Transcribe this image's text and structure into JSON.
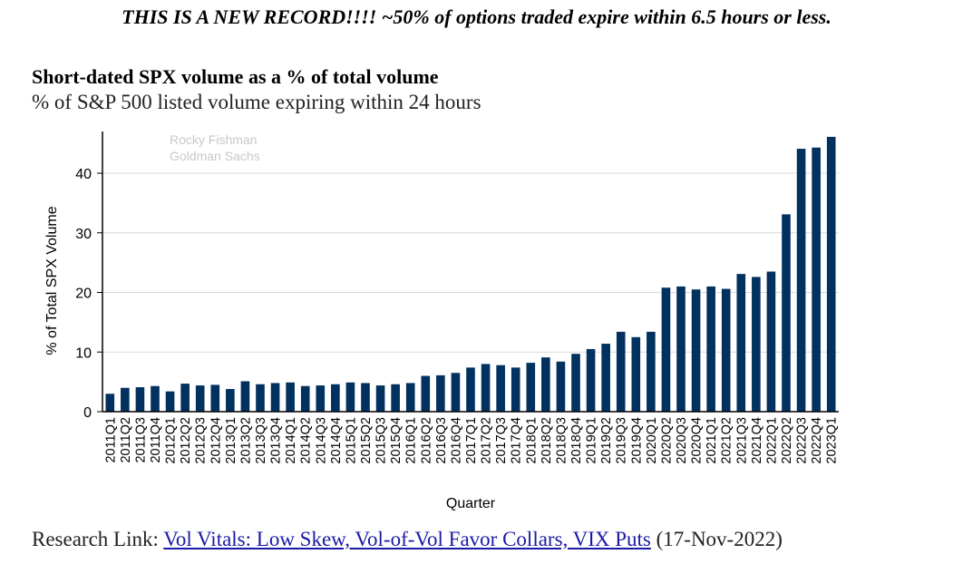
{
  "headline": "THIS IS A NEW RECORD!!!! ~50% of options traded expire within 6.5 hours or less.",
  "chart_title": "Short-dated SPX volume as a % of total volume",
  "chart_subtitle": "% of S&P 500 listed volume expiring within 24 hours",
  "watermark": {
    "line1": "Rocky Fishman",
    "line2": "Goldman Sachs"
  },
  "footer": {
    "prefix": "Research Link: ",
    "link_text": "Vol Vitals: Low Skew, Vol-of-Vol Favor Collars, VIX Puts",
    "suffix": " (17-Nov-2022)"
  },
  "colors": {
    "bar": "#00315f",
    "grid": "#d9d9d9",
    "axis": "#000000",
    "link": "#1a1aa6"
  },
  "chart_data": {
    "type": "bar",
    "title": "Short-dated SPX volume as a % of total volume",
    "subtitle": "% of S&P 500 listed volume expiring within 24 hours",
    "xlabel": "Quarter",
    "ylabel": "% of Total SPX Volume",
    "ylim": [
      0,
      47
    ],
    "yticks": [
      0,
      10,
      20,
      30,
      40
    ],
    "grid": true,
    "categories": [
      "2011Q1",
      "2011Q2",
      "2011Q3",
      "2011Q4",
      "2012Q1",
      "2012Q2",
      "2012Q3",
      "2012Q4",
      "2013Q1",
      "2013Q2",
      "2013Q3",
      "2013Q4",
      "2014Q1",
      "2014Q2",
      "2014Q3",
      "2014Q4",
      "2015Q1",
      "2015Q2",
      "2015Q3",
      "2015Q4",
      "2016Q1",
      "2016Q2",
      "2016Q3",
      "2016Q4",
      "2017Q1",
      "2017Q2",
      "2017Q3",
      "2017Q4",
      "2018Q1",
      "2018Q2",
      "2018Q3",
      "2018Q4",
      "2019Q1",
      "2019Q2",
      "2019Q3",
      "2019Q4",
      "2020Q1",
      "2020Q2",
      "2020Q3",
      "2020Q4",
      "2021Q1",
      "2021Q2",
      "2021Q3",
      "2021Q4",
      "2022Q1",
      "2022Q2",
      "2022Q3",
      "2022Q4",
      "2023Q1"
    ],
    "values": [
      3.0,
      4.0,
      4.1,
      4.3,
      3.4,
      4.7,
      4.4,
      4.5,
      3.8,
      5.1,
      4.6,
      4.8,
      4.9,
      4.3,
      4.4,
      4.6,
      4.9,
      4.8,
      4.4,
      4.6,
      4.8,
      6.0,
      6.1,
      6.5,
      7.4,
      8.0,
      7.8,
      7.4,
      8.2,
      9.1,
      8.4,
      9.7,
      10.5,
      11.4,
      13.4,
      12.5,
      13.4,
      20.8,
      21.0,
      20.5,
      21.0,
      20.6,
      23.1,
      22.6,
      23.5,
      33.1,
      44.1,
      44.3,
      46.1
    ]
  }
}
